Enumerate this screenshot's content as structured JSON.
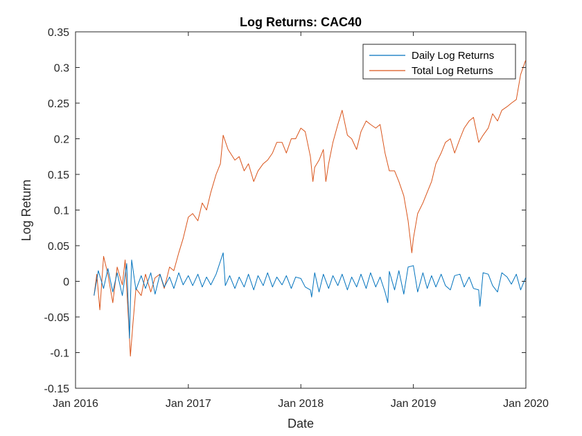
{
  "chart_data": {
    "type": "line",
    "title": "Log Returns: CAC40",
    "xlabel": "Date",
    "ylabel": "Log Return",
    "xlim": [
      "2016-01-01",
      "2020-01-01"
    ],
    "ylim": [
      -0.15,
      0.35
    ],
    "xticks": [
      {
        "date": "2016-01-01",
        "label": "Jan 2016"
      },
      {
        "date": "2017-01-01",
        "label": "Jan 2017"
      },
      {
        "date": "2018-01-01",
        "label": "Jan 2018"
      },
      {
        "date": "2019-01-01",
        "label": "Jan 2019"
      },
      {
        "date": "2020-01-01",
        "label": "Jan 2020"
      }
    ],
    "yticks": [
      {
        "value": -0.15,
        "label": "-0.15"
      },
      {
        "value": -0.1,
        "label": "-0.1"
      },
      {
        "value": -0.05,
        "label": "-0.05"
      },
      {
        "value": 0,
        "label": "0"
      },
      {
        "value": 0.05,
        "label": "0.05"
      },
      {
        "value": 0.1,
        "label": "0.1"
      },
      {
        "value": 0.15,
        "label": "0.15"
      },
      {
        "value": 0.2,
        "label": "0.2"
      },
      {
        "value": 0.25,
        "label": "0.25"
      },
      {
        "value": 0.3,
        "label": "0.3"
      },
      {
        "value": 0.35,
        "label": "0.35"
      }
    ],
    "grid": false,
    "legend_position": "top-right",
    "series": [
      {
        "name": "Daily Log Returns",
        "color": "#0072BD",
        "x": [
          "2016-03-01",
          "2016-03-15",
          "2016-04-01",
          "2016-04-15",
          "2016-05-01",
          "2016-05-15",
          "2016-06-01",
          "2016-06-15",
          "2016-06-24",
          "2016-06-27",
          "2016-07-01",
          "2016-07-15",
          "2016-08-01",
          "2016-08-15",
          "2016-09-01",
          "2016-09-15",
          "2016-10-01",
          "2016-10-15",
          "2016-11-01",
          "2016-11-15",
          "2016-12-01",
          "2016-12-15",
          "2017-01-01",
          "2017-01-15",
          "2017-02-01",
          "2017-02-15",
          "2017-03-01",
          "2017-03-15",
          "2017-04-01",
          "2017-04-24",
          "2017-05-01",
          "2017-05-15",
          "2017-06-01",
          "2017-06-15",
          "2017-07-01",
          "2017-07-15",
          "2017-08-01",
          "2017-08-15",
          "2017-09-01",
          "2017-09-15",
          "2017-10-01",
          "2017-10-15",
          "2017-11-01",
          "2017-11-15",
          "2017-12-01",
          "2017-12-15",
          "2018-01-01",
          "2018-01-15",
          "2018-02-01",
          "2018-02-05",
          "2018-02-15",
          "2018-03-01",
          "2018-03-15",
          "2018-04-01",
          "2018-04-15",
          "2018-05-01",
          "2018-05-15",
          "2018-06-01",
          "2018-06-15",
          "2018-07-01",
          "2018-07-15",
          "2018-08-01",
          "2018-08-15",
          "2018-09-01",
          "2018-09-15",
          "2018-10-01",
          "2018-10-10",
          "2018-10-15",
          "2018-11-01",
          "2018-11-15",
          "2018-12-01",
          "2018-12-15",
          "2019-01-01",
          "2019-01-15",
          "2019-02-01",
          "2019-02-15",
          "2019-03-01",
          "2019-03-15",
          "2019-04-01",
          "2019-04-15",
          "2019-05-01",
          "2019-05-15",
          "2019-06-01",
          "2019-06-15",
          "2019-07-01",
          "2019-07-15",
          "2019-08-01",
          "2019-08-05",
          "2019-08-15",
          "2019-09-01",
          "2019-09-15",
          "2019-10-01",
          "2019-10-15",
          "2019-11-01",
          "2019-11-15",
          "2019-12-01",
          "2019-12-15",
          "2019-12-31"
        ],
        "y": [
          -0.02,
          0.015,
          -0.01,
          0.018,
          -0.015,
          0.012,
          -0.02,
          0.025,
          -0.08,
          -0.03,
          0.03,
          -0.012,
          0.008,
          -0.01,
          0.012,
          -0.018,
          0.01,
          -0.008,
          0.006,
          -0.01,
          0.012,
          -0.005,
          0.008,
          -0.006,
          0.01,
          -0.008,
          0.006,
          -0.005,
          0.01,
          0.04,
          -0.006,
          0.008,
          -0.01,
          0.006,
          -0.008,
          0.01,
          -0.012,
          0.008,
          -0.006,
          0.012,
          -0.008,
          0.006,
          -0.005,
          0.008,
          -0.01,
          0.006,
          0.004,
          -0.008,
          -0.012,
          -0.022,
          0.012,
          -0.015,
          0.01,
          -0.01,
          0.008,
          -0.006,
          0.01,
          -0.012,
          0.006,
          -0.008,
          0.01,
          -0.01,
          0.012,
          -0.008,
          0.006,
          -0.015,
          -0.03,
          0.014,
          -0.012,
          0.015,
          -0.018,
          0.02,
          0.022,
          -0.015,
          0.012,
          -0.01,
          0.008,
          -0.008,
          0.01,
          -0.006,
          -0.012,
          0.008,
          0.01,
          -0.008,
          0.006,
          -0.01,
          -0.012,
          -0.035,
          0.012,
          0.01,
          -0.006,
          -0.015,
          0.012,
          0.006,
          -0.004,
          0.01,
          -0.012,
          0.005
        ]
      },
      {
        "name": "Total Log Returns",
        "color": "#D95319",
        "x": [
          "2016-03-01",
          "2016-03-10",
          "2016-03-20",
          "2016-04-01",
          "2016-04-15",
          "2016-05-01",
          "2016-05-15",
          "2016-06-01",
          "2016-06-10",
          "2016-06-24",
          "2016-06-27",
          "2016-07-05",
          "2016-07-15",
          "2016-08-01",
          "2016-08-15",
          "2016-09-01",
          "2016-09-15",
          "2016-10-01",
          "2016-10-15",
          "2016-11-01",
          "2016-11-15",
          "2016-12-01",
          "2016-12-15",
          "2017-01-01",
          "2017-01-15",
          "2017-02-01",
          "2017-02-15",
          "2017-03-01",
          "2017-03-15",
          "2017-04-01",
          "2017-04-15",
          "2017-04-24",
          "2017-05-10",
          "2017-06-01",
          "2017-06-15",
          "2017-07-01",
          "2017-07-15",
          "2017-08-01",
          "2017-08-15",
          "2017-09-01",
          "2017-09-15",
          "2017-10-01",
          "2017-10-15",
          "2017-11-01",
          "2017-11-15",
          "2017-12-01",
          "2017-12-15",
          "2018-01-01",
          "2018-01-15",
          "2018-02-01",
          "2018-02-09",
          "2018-02-15",
          "2018-03-01",
          "2018-03-15",
          "2018-03-23",
          "2018-04-01",
          "2018-04-15",
          "2018-05-01",
          "2018-05-15",
          "2018-06-01",
          "2018-06-15",
          "2018-07-01",
          "2018-07-15",
          "2018-08-01",
          "2018-08-15",
          "2018-09-01",
          "2018-09-15",
          "2018-10-01",
          "2018-10-15",
          "2018-11-01",
          "2018-11-15",
          "2018-12-01",
          "2018-12-15",
          "2018-12-27",
          "2019-01-01",
          "2019-01-15",
          "2019-02-01",
          "2019-02-15",
          "2019-03-01",
          "2019-03-15",
          "2019-04-01",
          "2019-04-15",
          "2019-05-01",
          "2019-05-15",
          "2019-06-01",
          "2019-06-15",
          "2019-07-01",
          "2019-07-15",
          "2019-08-01",
          "2019-08-15",
          "2019-09-01",
          "2019-09-15",
          "2019-10-01",
          "2019-10-15",
          "2019-11-01",
          "2019-11-15",
          "2019-12-01",
          "2019-12-15",
          "2019-12-31"
        ],
        "y": [
          -0.02,
          0.01,
          -0.04,
          0.035,
          0.01,
          -0.03,
          0.02,
          -0.005,
          0.03,
          -0.08,
          -0.105,
          -0.06,
          -0.01,
          -0.02,
          0.01,
          -0.015,
          0.005,
          0.01,
          -0.01,
          0.02,
          0.015,
          0.04,
          0.06,
          0.09,
          0.095,
          0.085,
          0.11,
          0.1,
          0.125,
          0.15,
          0.165,
          0.205,
          0.185,
          0.17,
          0.175,
          0.155,
          0.165,
          0.14,
          0.155,
          0.165,
          0.17,
          0.18,
          0.195,
          0.195,
          0.18,
          0.2,
          0.2,
          0.215,
          0.21,
          0.175,
          0.14,
          0.16,
          0.17,
          0.185,
          0.14,
          0.165,
          0.195,
          0.22,
          0.24,
          0.205,
          0.2,
          0.185,
          0.21,
          0.225,
          0.22,
          0.215,
          0.22,
          0.18,
          0.155,
          0.155,
          0.14,
          0.12,
          0.085,
          0.04,
          0.06,
          0.095,
          0.11,
          0.125,
          0.14,
          0.165,
          0.18,
          0.195,
          0.2,
          0.18,
          0.2,
          0.215,
          0.225,
          0.23,
          0.195,
          0.205,
          0.215,
          0.235,
          0.225,
          0.24,
          0.245,
          0.25,
          0.255,
          0.29,
          0.31
        ]
      }
    ]
  }
}
